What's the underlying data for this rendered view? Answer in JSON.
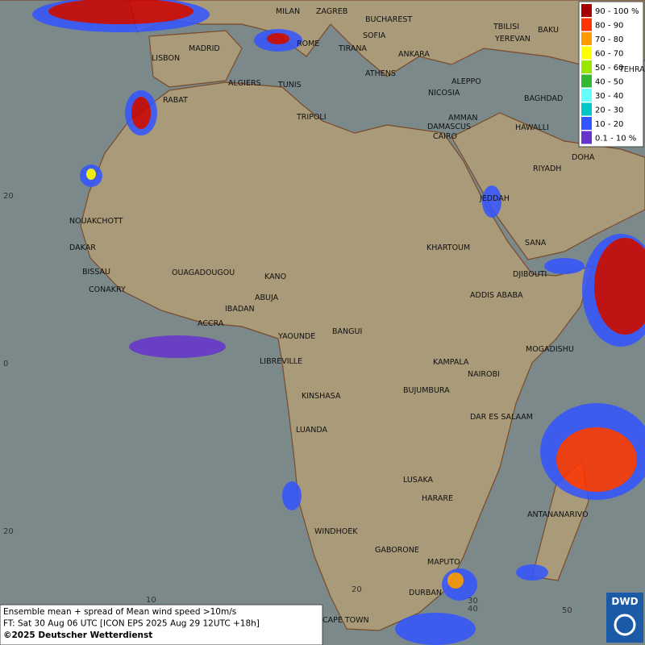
{
  "cities": [
    "MILAN",
    "ZAGREB",
    "BUCHAREST",
    "TBILISI",
    "BAKU",
    "YEREVAN",
    "TEHRA",
    "SOFIA",
    "ROME",
    "TIRANA",
    "ANKARA",
    "MADRID",
    "LISBON",
    "ATHENS",
    "ALGIERS",
    "TUNIS",
    "ALEPPO",
    "NICOSIA",
    "BAGHDAD",
    "RABAT",
    "DAMASCUS",
    "AMMAN",
    "TRIPOLI",
    "HAWALLI",
    "CAIRO",
    "DOHA",
    "RIYADH",
    "JEDDAH",
    "NOUAKCHOTT",
    "DAKAR",
    "BISSAU",
    "KHARTOUM",
    "SANA",
    "DJIBOUTI",
    "CONAKRY",
    "OUAGADOUGOU",
    "KANO",
    "ABUJA",
    "ADDIS ABABA",
    "IBADAN",
    "ACCRA",
    "YAOUNDE",
    "BANGUI",
    "MOGADISHU",
    "LIBREVILLE",
    "KAMPALA",
    "NAIROBI",
    "KINSHASA",
    "BUJUMBURA",
    "DAR ES SALAAM",
    "LUANDA",
    "LUSAKA",
    "HARARE",
    "ANTANANARIVO",
    "WINDHOEK",
    "GABORONE",
    "MAPUTO",
    "DURBAN",
    "CAPE TOWN"
  ],
  "grid_labels": {
    "lat": [
      "20",
      "0",
      "20"
    ],
    "lon": [
      "10",
      "20",
      "30",
      "40",
      "50"
    ]
  },
  "legend": [
    {
      "label": "90 - 100 %",
      "color": "#a50000"
    },
    {
      "label": "80 - 90",
      "color": "#ff3300"
    },
    {
      "label": "70 - 80",
      "color": "#ff9900"
    },
    {
      "label": "60 - 70",
      "color": "#ffff00"
    },
    {
      "label": "50 - 60",
      "color": "#99e600"
    },
    {
      "label": "40 - 50",
      "color": "#33b833"
    },
    {
      "label": "30 - 40",
      "color": "#66ffff"
    },
    {
      "label": "20 - 30",
      "color": "#00c8c8"
    },
    {
      "label": "10 - 20",
      "color": "#3355ff"
    },
    {
      "label": "0.1 - 10 %",
      "color": "#6633cc"
    }
  ],
  "footer": [
    "Ensemble mean + spread of Mean wind speed >10m/s",
    "FT: Sat 30 Aug 06 UTC [ICON EPS 2025 Aug 29 12UTC +18h]",
    "©2025 Deutscher Wetterdienst"
  ],
  "logo": "DWD"
}
